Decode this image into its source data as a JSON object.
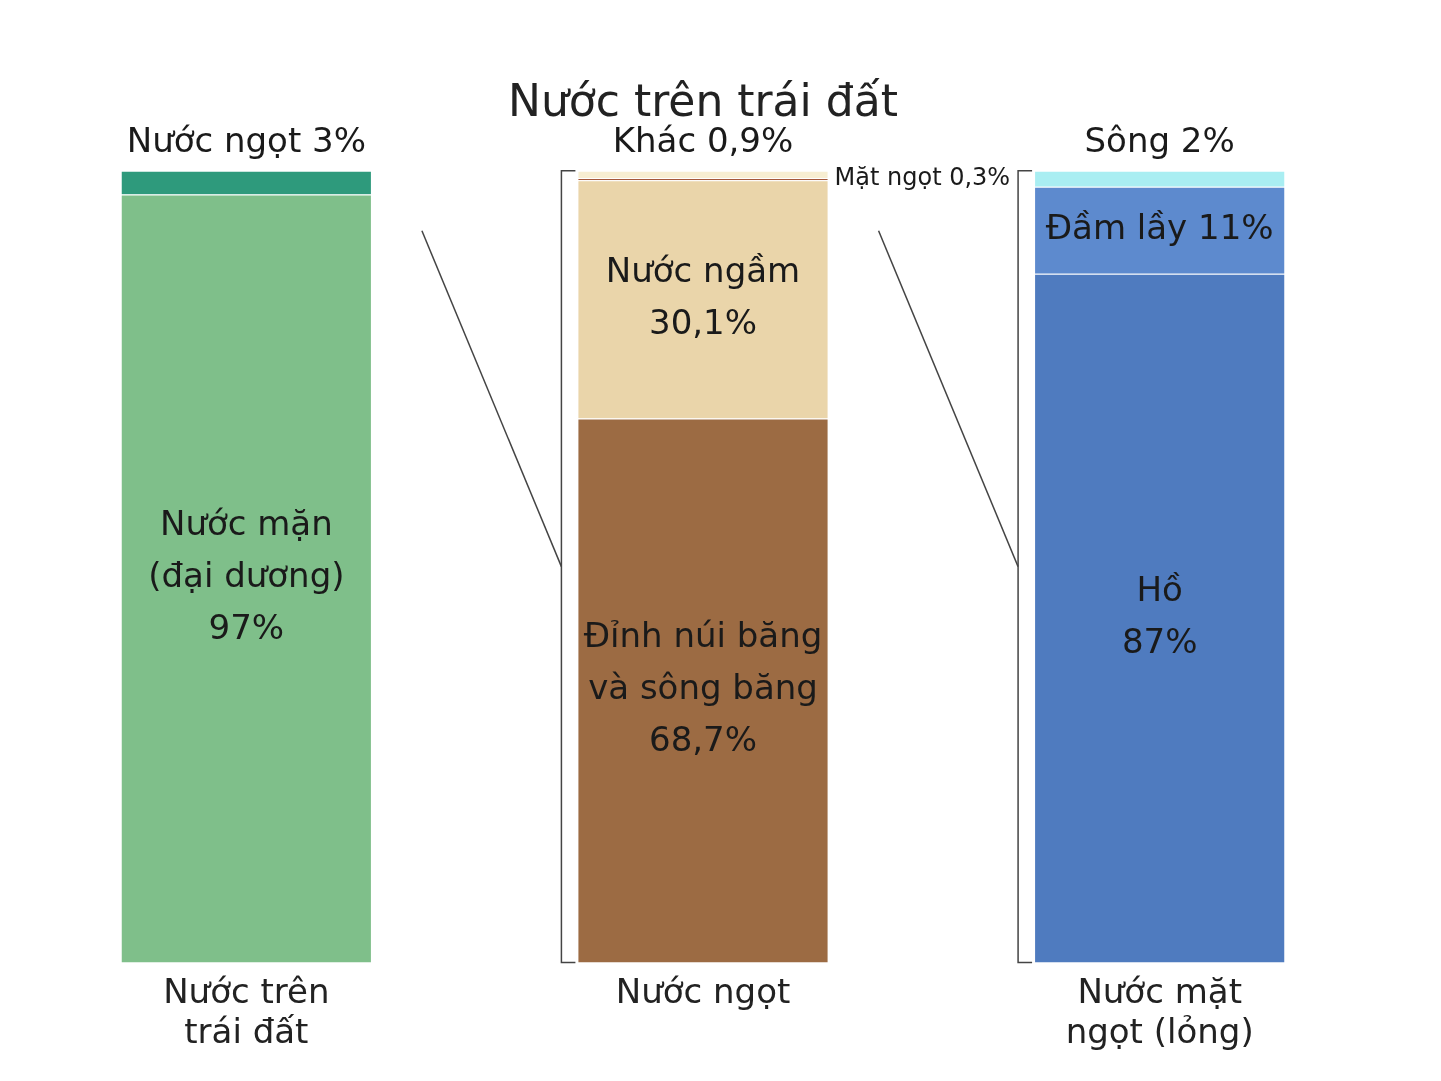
{
  "chart_data": {
    "type": "bar",
    "title": "Nước trên trái đất",
    "stacked": true,
    "tick_labels": "x",
    "grid": false,
    "legend": false,
    "categories": [
      "Nước trên trái đất",
      "Nước ngọt",
      "Nước mặt ngọt (lỏng)"
    ],
    "series": [
      {
        "name": "Nước mặn (đại dương)",
        "color": "#7fbf8a",
        "values": [
          97,
          null,
          null
        ],
        "value_labels": [
          "97%",
          null,
          null
        ]
      },
      {
        "name": "Nước ngọt",
        "color": "#2e9a7c",
        "values": [
          3,
          null,
          null
        ],
        "value_labels": [
          "3%",
          null,
          null
        ]
      },
      {
        "name": "Đỉnh núi băng và sông băng",
        "color": "#9c6b43",
        "values": [
          null,
          68.7,
          null
        ],
        "value_labels": [
          null,
          "68,7%",
          null
        ]
      },
      {
        "name": "Nước ngầm",
        "color": "#ead5aa",
        "values": [
          null,
          30.1,
          null
        ],
        "value_labels": [
          null,
          "30,1%",
          null
        ]
      },
      {
        "name": "Mặt ngọt",
        "color": "#a5583b",
        "values": [
          null,
          0.3,
          null
        ],
        "value_labels": [
          null,
          "0,3%",
          null
        ]
      },
      {
        "name": "Khác",
        "color": "#f7eed2",
        "values": [
          null,
          0.9,
          null
        ],
        "value_labels": [
          null,
          "0,9%",
          null
        ]
      },
      {
        "name": "Hồ",
        "color": "#4f7bbf",
        "values": [
          null,
          null,
          87
        ],
        "value_labels": [
          null,
          null,
          "87%"
        ]
      },
      {
        "name": "Đầm lầy",
        "color": "#5d8ace",
        "values": [
          null,
          null,
          11
        ],
        "value_labels": [
          null,
          null,
          "11%"
        ]
      },
      {
        "name": "Sông",
        "color": "#a9eef2",
        "values": [
          null,
          null,
          2
        ],
        "value_labels": [
          null,
          null,
          "2%"
        ]
      }
    ]
  }
}
